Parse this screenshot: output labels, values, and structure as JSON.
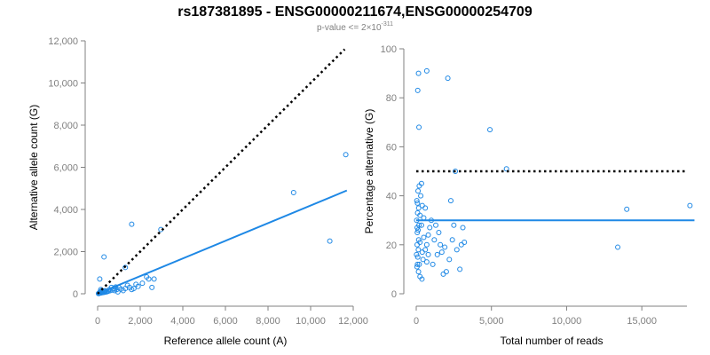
{
  "chart_data": {
    "title": "rs187381895 - ENSG00000211674,ENSG00000254709",
    "subtitle": {
      "text": "p-value <= 2×10",
      "superscript": "-311"
    },
    "colors": {
      "points": "#1E88E5",
      "fit": "#1E88E5",
      "reference": "#000000",
      "axis": "#808080"
    },
    "panels": [
      {
        "type": "scatter",
        "xlabel": "Reference allele count (A)",
        "ylabel": "Alternative allele count (G)",
        "xlim": [
          0,
          12000
        ],
        "ylim": [
          0,
          12000
        ],
        "xticks": [
          0,
          2000,
          4000,
          6000,
          8000,
          10000,
          12000
        ],
        "yticks": [
          0,
          2000,
          4000,
          6000,
          8000,
          10000,
          12000
        ],
        "xtick_labels": [
          "0",
          "2,000",
          "4,000",
          "6,000",
          "8,000",
          "10,000",
          "12,000"
        ],
        "ytick_labels": [
          "0",
          "2,000",
          "4,000",
          "6,000",
          "8,000",
          "10,000",
          "12,000"
        ],
        "reference_line": {
          "style": "dotted",
          "x": [
            0,
            11600
          ],
          "y": [
            0,
            11600
          ]
        },
        "fit_line": {
          "style": "solid",
          "x": [
            0,
            11700
          ],
          "y": [
            0,
            4900
          ]
        },
        "points": [
          [
            11650,
            6600
          ],
          [
            9200,
            4800
          ],
          [
            10900,
            2500
          ],
          [
            1600,
            3300
          ],
          [
            2970,
            3050
          ],
          [
            300,
            1750
          ],
          [
            1300,
            1250
          ],
          [
            2300,
            800
          ],
          [
            2400,
            700
          ],
          [
            2650,
            700
          ],
          [
            2550,
            300
          ],
          [
            1800,
            450
          ],
          [
            1700,
            250
          ],
          [
            1500,
            300
          ],
          [
            1300,
            250
          ],
          [
            1100,
            220
          ],
          [
            900,
            200
          ],
          [
            800,
            150
          ],
          [
            700,
            180
          ],
          [
            600,
            150
          ],
          [
            500,
            120
          ],
          [
            450,
            100
          ],
          [
            400,
            90
          ],
          [
            350,
            80
          ],
          [
            300,
            70
          ],
          [
            250,
            60
          ],
          [
            200,
            50
          ],
          [
            150,
            40
          ],
          [
            100,
            30
          ],
          [
            80,
            20
          ],
          [
            60,
            15
          ],
          [
            40,
            10
          ],
          [
            120,
            110
          ],
          [
            220,
            120
          ],
          [
            320,
            130
          ],
          [
            150,
            200
          ],
          [
            200,
            150
          ],
          [
            1000,
            300
          ],
          [
            1200,
            150
          ],
          [
            1900,
            350
          ],
          [
            2100,
            500
          ],
          [
            1400,
            400
          ],
          [
            650,
            300
          ],
          [
            750,
            250
          ],
          [
            100,
            700
          ],
          [
            350,
            140
          ],
          [
            550,
            200
          ],
          [
            850,
            320
          ],
          [
            1600,
            200
          ],
          [
            950,
            90
          ]
        ]
      },
      {
        "type": "scatter",
        "xlabel": "Total number of reads",
        "ylabel": "Percentage alternative (G)",
        "xlim": [
          0,
          18000
        ],
        "ylim": [
          0,
          100
        ],
        "xticks": [
          0,
          5000,
          10000,
          15000
        ],
        "yticks": [
          0,
          20,
          40,
          60,
          80,
          100
        ],
        "xtick_labels": [
          "0",
          "5,000",
          "10,000",
          "15,000"
        ],
        "ytick_labels": [
          "0",
          "20",
          "40",
          "60",
          "80",
          "100"
        ],
        "reference_line": {
          "style": "dotted",
          "x": [
            0,
            18000
          ],
          "y": [
            50,
            50
          ]
        },
        "fit_line": {
          "style": "solid",
          "x": [
            0,
            18500
          ],
          "y": [
            30,
            30
          ]
        },
        "points": [
          [
            150,
            90
          ],
          [
            700,
            91
          ],
          [
            2100,
            88
          ],
          [
            100,
            83
          ],
          [
            180,
            68
          ],
          [
            4900,
            67
          ],
          [
            6000,
            51
          ],
          [
            2600,
            50
          ],
          [
            18200,
            36
          ],
          [
            14000,
            34.5
          ],
          [
            13400,
            19
          ],
          [
            3200,
            21
          ],
          [
            3000,
            20
          ],
          [
            3100,
            27
          ],
          [
            2500,
            28
          ],
          [
            2300,
            38
          ],
          [
            1900,
            19
          ],
          [
            1700,
            17
          ],
          [
            1500,
            25
          ],
          [
            1400,
            16
          ],
          [
            1200,
            22
          ],
          [
            1100,
            12
          ],
          [
            1000,
            30
          ],
          [
            900,
            27
          ],
          [
            800,
            24
          ],
          [
            700,
            20
          ],
          [
            600,
            18
          ],
          [
            500,
            23
          ],
          [
            450,
            14
          ],
          [
            400,
            36
          ],
          [
            350,
            45
          ],
          [
            300,
            40
          ],
          [
            250,
            32
          ],
          [
            200,
            44
          ],
          [
            180,
            28
          ],
          [
            160,
            22
          ],
          [
            140,
            18
          ],
          [
            120,
            26
          ],
          [
            100,
            15
          ],
          [
            90,
            33
          ],
          [
            80,
            12
          ],
          [
            70,
            25
          ],
          [
            60,
            20
          ],
          [
            50,
            11
          ],
          [
            40,
            38
          ],
          [
            30,
            30
          ],
          [
            20,
            16
          ],
          [
            150,
            9
          ],
          [
            250,
            7
          ],
          [
            380,
            6
          ],
          [
            1800,
            8
          ],
          [
            2000,
            9
          ],
          [
            2200,
            14
          ],
          [
            2900,
            10
          ],
          [
            600,
            35
          ],
          [
            500,
            31
          ],
          [
            350,
            28
          ],
          [
            250,
            21
          ],
          [
            120,
            42
          ],
          [
            80,
            37
          ],
          [
            160,
            35
          ],
          [
            400,
            17
          ],
          [
            700,
            13
          ],
          [
            800,
            16
          ],
          [
            1300,
            28
          ],
          [
            1600,
            20
          ],
          [
            2400,
            22
          ],
          [
            2700,
            18
          ],
          [
            60,
            27
          ],
          [
            200,
            12
          ]
        ]
      }
    ]
  }
}
